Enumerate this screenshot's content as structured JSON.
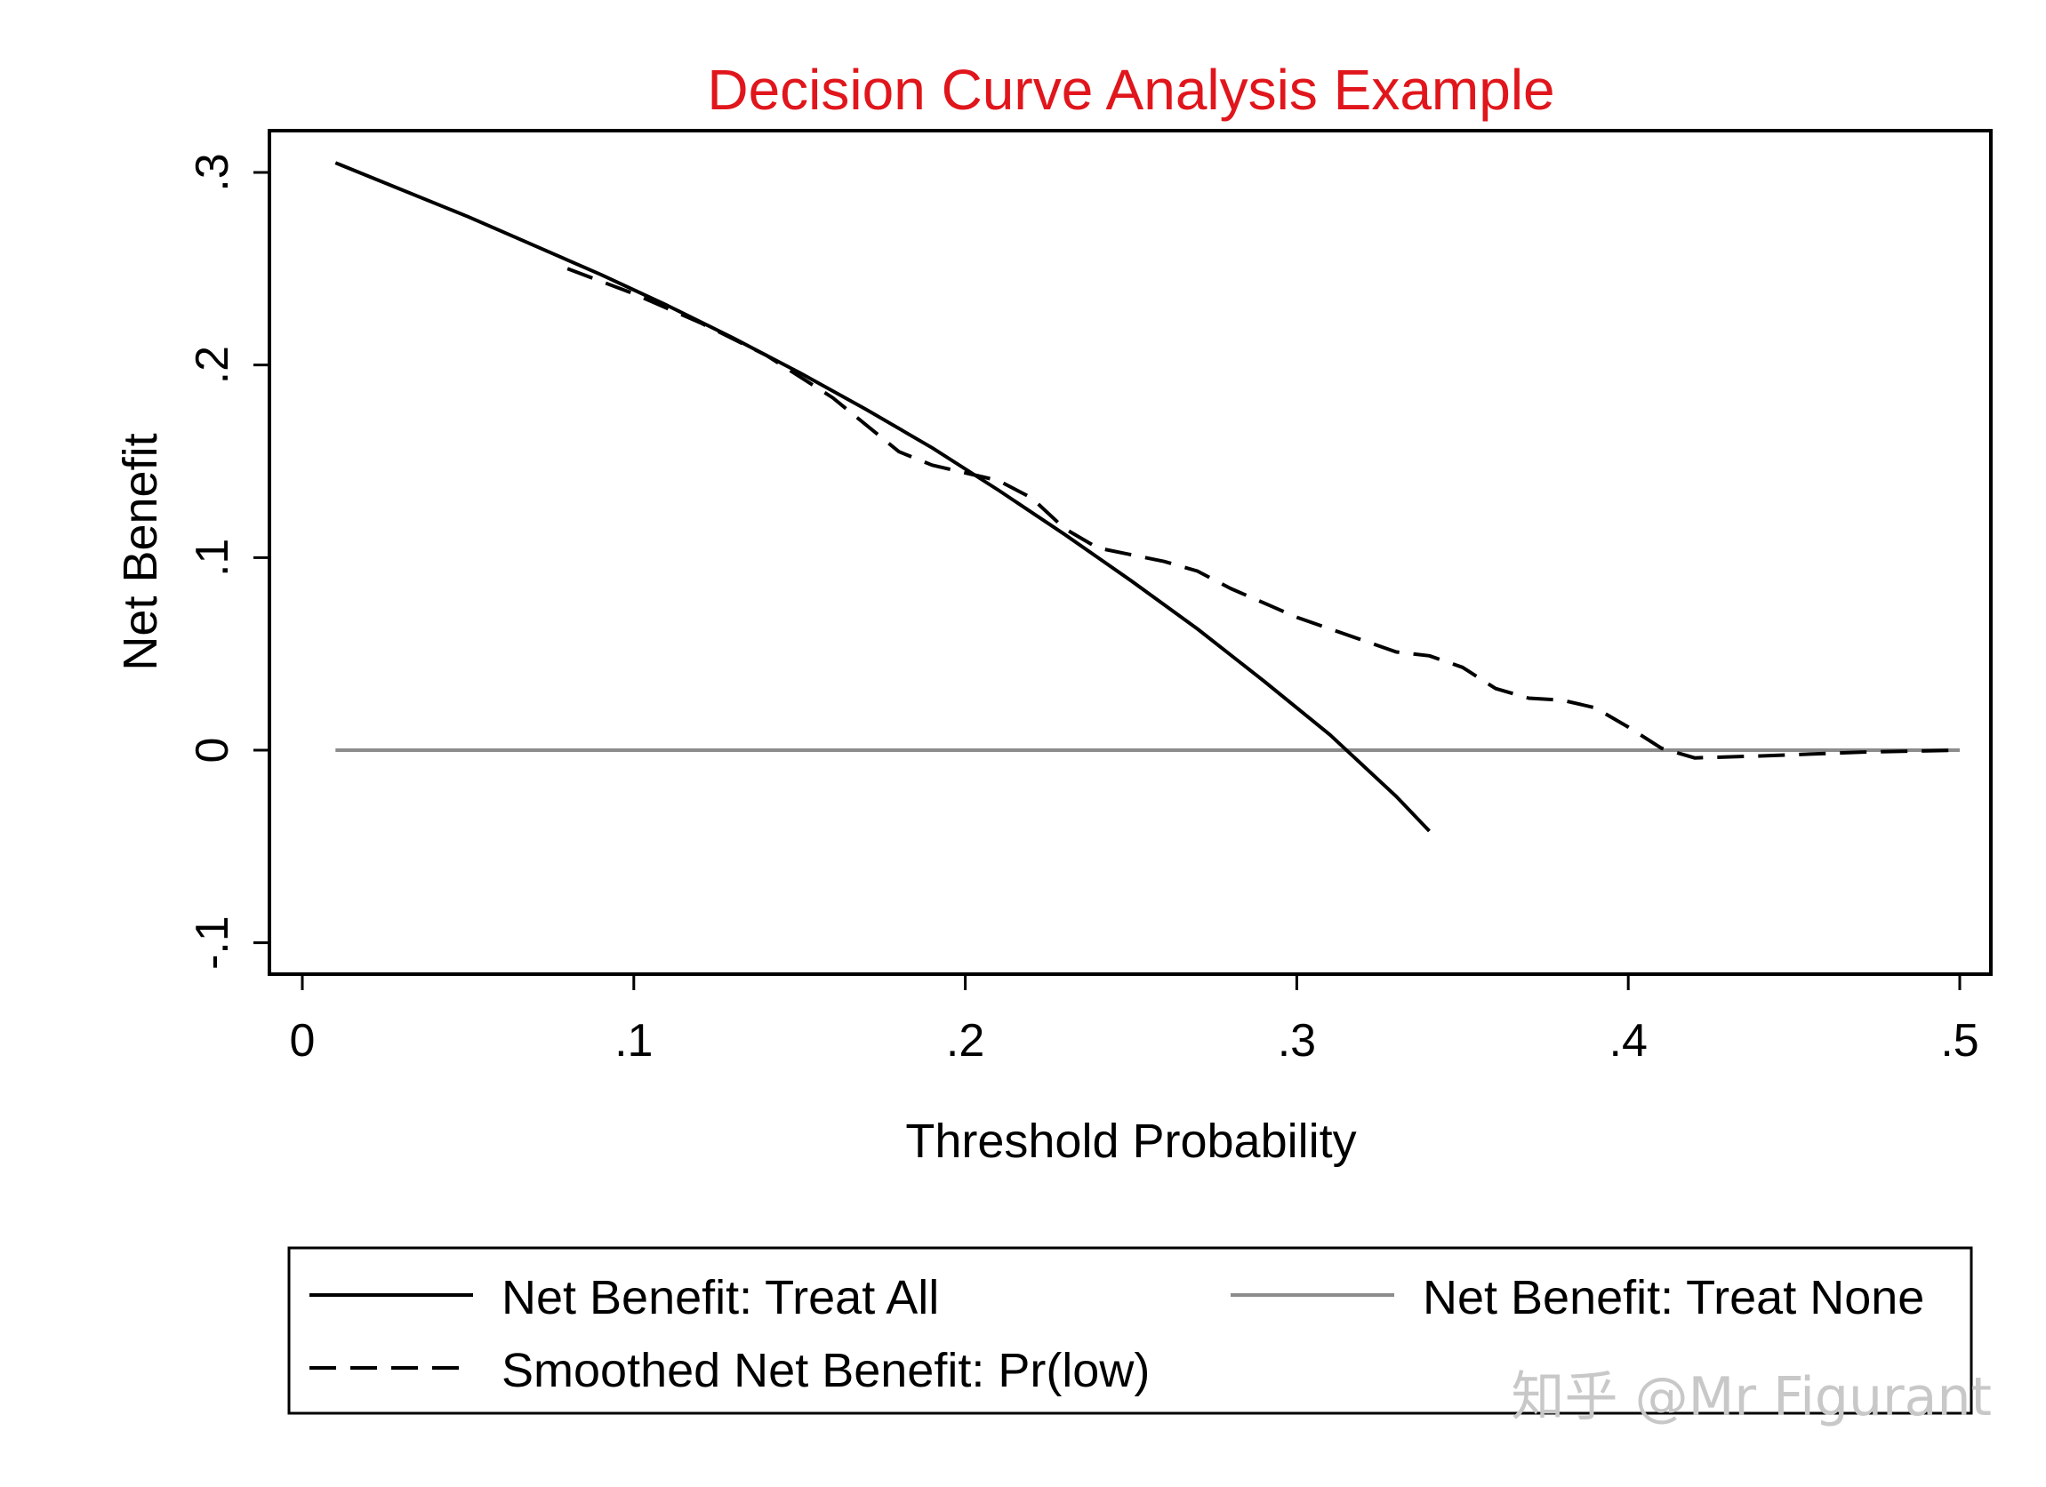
{
  "chart_data": {
    "type": "line",
    "title": "Decision Curve Analysis Example",
    "title_color": "#e0161c",
    "xlabel": "Threshold Probability",
    "ylabel": "Net Benefit",
    "xlim": [
      -0.01,
      0.51
    ],
    "ylim": [
      -0.116,
      0.322
    ],
    "x_ticks": [
      {
        "value": 0,
        "label": "0"
      },
      {
        "value": 0.1,
        "label": ".1"
      },
      {
        "value": 0.2,
        "label": ".2"
      },
      {
        "value": 0.3,
        "label": ".3"
      },
      {
        "value": 0.4,
        "label": ".4"
      },
      {
        "value": 0.5,
        "label": ".5"
      }
    ],
    "y_ticks": [
      {
        "value": -0.1,
        "label": "-.1"
      },
      {
        "value": 0,
        "label": "0"
      },
      {
        "value": 0.1,
        "label": ".1"
      },
      {
        "value": 0.2,
        "label": ".2"
      },
      {
        "value": 0.3,
        "label": ".3"
      }
    ],
    "grid": false,
    "legend_position": "bottom",
    "series": [
      {
        "name": "Net Benefit: Treat All",
        "style": "solid",
        "color": "#000000",
        "x": [
          0.01,
          0.03,
          0.05,
          0.07,
          0.09,
          0.11,
          0.13,
          0.15,
          0.17,
          0.19,
          0.21,
          0.23,
          0.25,
          0.27,
          0.29,
          0.31,
          0.33,
          0.34
        ],
        "y": [
          0.305,
          0.291,
          0.277,
          0.262,
          0.247,
          0.231,
          0.214,
          0.196,
          0.177,
          0.157,
          0.135,
          0.112,
          0.088,
          0.063,
          0.036,
          0.008,
          -0.024,
          -0.042
        ]
      },
      {
        "name": "Smoothed Net Benefit: Pr(low)",
        "style": "dashed",
        "color": "#000000",
        "x": [
          0.08,
          0.1,
          0.12,
          0.14,
          0.16,
          0.18,
          0.19,
          0.2,
          0.21,
          0.22,
          0.23,
          0.24,
          0.26,
          0.27,
          0.28,
          0.3,
          0.31,
          0.32,
          0.33,
          0.34,
          0.35,
          0.36,
          0.37,
          0.38,
          0.39,
          0.4,
          0.41,
          0.42,
          0.44,
          0.47,
          0.5
        ],
        "y": [
          0.25,
          0.237,
          0.222,
          0.205,
          0.183,
          0.155,
          0.148,
          0.144,
          0.14,
          0.131,
          0.115,
          0.105,
          0.098,
          0.093,
          0.084,
          0.069,
          0.063,
          0.057,
          0.051,
          0.049,
          0.043,
          0.032,
          0.027,
          0.026,
          0.022,
          0.012,
          0.001,
          -0.004,
          -0.003,
          -0.001,
          0.0
        ]
      },
      {
        "name": "Net Benefit: Treat None",
        "style": "solid",
        "color": "#8c8c8c",
        "x": [
          0.01,
          0.5
        ],
        "y": [
          0,
          0
        ]
      }
    ]
  },
  "legend": {
    "entries": [
      {
        "label": "Net Benefit: Treat All",
        "style": "solid",
        "color": "#000000"
      },
      {
        "label": "Net Benefit: Treat None",
        "style": "solid",
        "color": "#8c8c8c"
      },
      {
        "label": "Smoothed Net Benefit: Pr(low)",
        "style": "dashed",
        "color": "#000000"
      }
    ]
  },
  "watermark": {
    "text": "知乎 @Mr Figurant"
  }
}
